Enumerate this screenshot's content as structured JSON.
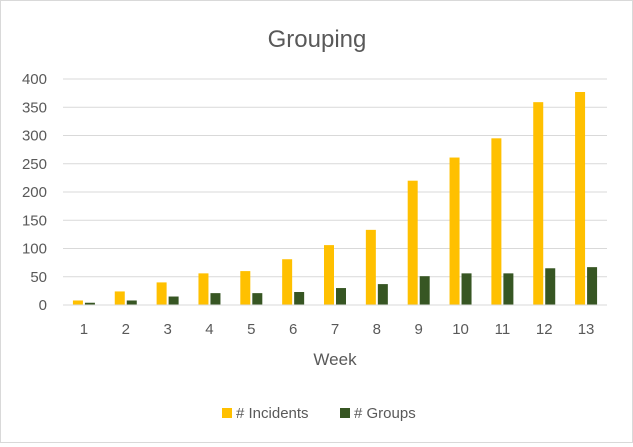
{
  "chart_data": {
    "type": "bar",
    "title": "Grouping",
    "xlabel": "Week",
    "ylabel": "",
    "categories": [
      "1",
      "2",
      "3",
      "4",
      "5",
      "6",
      "7",
      "8",
      "9",
      "10",
      "11",
      "12",
      "13"
    ],
    "ylim": [
      0,
      400
    ],
    "yticks": [
      "0",
      "50",
      "100",
      "150",
      "200",
      "250",
      "300",
      "350",
      "400"
    ],
    "grid": true,
    "legend_position": "bottom",
    "series": [
      {
        "name": "# Incidents",
        "color": "#FFC000",
        "values": [
          8,
          24,
          40,
          56,
          60,
          81,
          106,
          133,
          220,
          261,
          295,
          359,
          377
        ]
      },
      {
        "name": "# Groups",
        "color": "#375623",
        "values": [
          4,
          8,
          15,
          21,
          21,
          23,
          30,
          37,
          51,
          56,
          56,
          65,
          67
        ]
      }
    ]
  }
}
